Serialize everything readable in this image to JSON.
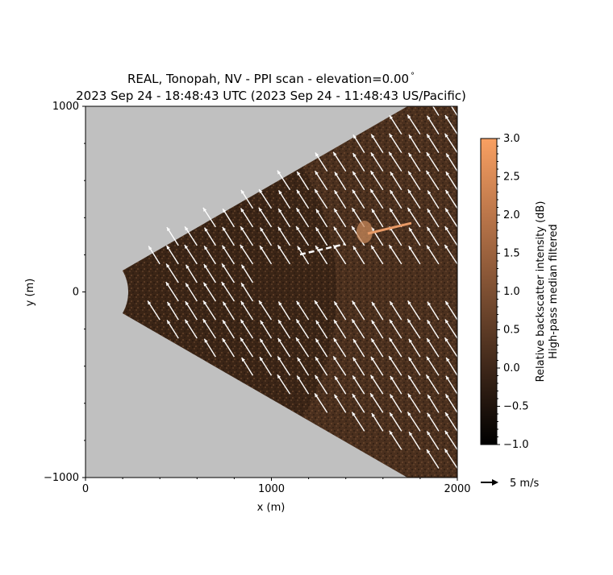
{
  "chart_data": {
    "type": "heatmap",
    "title_line1": "REAL, Tonopah, NV - PPI scan - elevation=0.00",
    "title_degree": "°",
    "title_line2": "2023 Sep 24 - 18:48:43 UTC (2023 Sep 24 - 11:48:43 US/Pacific)",
    "xlabel": "x (m)",
    "ylabel": "y (m)",
    "xlim": [
      0,
      2000
    ],
    "ylim": [
      -1000,
      1000
    ],
    "xticks": [
      "0",
      "1000",
      "2000"
    ],
    "yticks": [
      "−1000",
      "0",
      "1000"
    ],
    "grid": false,
    "scan_sector": {
      "inner_range_m": 230,
      "outer_range_m": 2400,
      "half_angle_deg": 30
    },
    "colorbar": {
      "label_line1": "Relative backscatter intensity (dB)",
      "label_line2": "High-pass median filtered",
      "range": [
        -1.0,
        3.0
      ],
      "ticks": [
        "−1.0",
        "−0.5",
        "0.0",
        "0.5",
        "1.0",
        "1.5",
        "2.0",
        "2.5",
        "3.0"
      ],
      "colormap": "copper"
    },
    "vector_key": {
      "value": 5,
      "label": "5 m/s"
    },
    "wind_vectors": {
      "typical_u_ms": -2.8,
      "typical_v_ms": 4.3,
      "grid_spacing_m": 100
    },
    "colors": {
      "out_of_scan": "#c0c0c0",
      "arrow": "#ffffff",
      "frame": "#000000"
    }
  }
}
